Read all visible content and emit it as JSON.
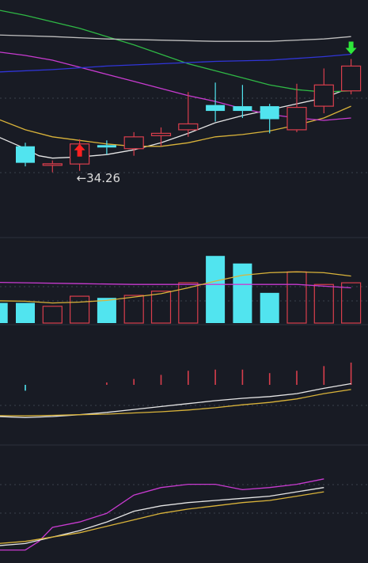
{
  "colors": {
    "background": "#181b24",
    "separator": "#2c313c",
    "grid": "#3a404c",
    "up": "#d93e4c",
    "down": "#51e4ef",
    "ma_white": "#e6e6e6",
    "ma_yellow": "#d9b33a",
    "ma_magenta": "#c83bd0",
    "ma_green": "#2fb845",
    "ma_blue": "#3035d8",
    "ma_gray": "#bdbdbd",
    "arrow_up": "#ff2020",
    "arrow_down": "#2ee83a",
    "annotation": "#dcdcdc"
  },
  "chart_data": [
    {
      "panel": "price",
      "type": "candlestick",
      "ylim": [
        31.5,
        41.5
      ],
      "x": [
        0,
        1,
        2,
        3,
        4,
        5,
        6,
        7,
        8,
        9,
        10,
        11,
        12
      ],
      "candles": [
        {
          "open": 35.3,
          "close": 34.6,
          "high": 35.45,
          "low": 34.45,
          "dir": "down"
        },
        {
          "open": 34.52,
          "close": 34.56,
          "high": 34.7,
          "low": 34.2,
          "dir": "up"
        },
        {
          "open": 34.55,
          "close": 35.4,
          "high": 35.6,
          "low": 34.26,
          "dir": "up",
          "marker": "up-arrow"
        },
        {
          "open": 35.35,
          "close": 35.25,
          "high": 35.55,
          "low": 34.95,
          "dir": "down"
        },
        {
          "open": 35.2,
          "close": 35.7,
          "high": 35.9,
          "low": 34.9,
          "dir": "up"
        },
        {
          "open": 35.75,
          "close": 35.85,
          "high": 36.1,
          "low": 35.3,
          "dir": "up"
        },
        {
          "open": 36.0,
          "close": 36.25,
          "high": 37.6,
          "low": 35.7,
          "dir": "up"
        },
        {
          "open": 37.05,
          "close": 36.8,
          "high": 38.0,
          "low": 36.35,
          "dir": "down"
        },
        {
          "open": 37.0,
          "close": 36.8,
          "high": 37.9,
          "low": 36.5,
          "dir": "down"
        },
        {
          "open": 37.0,
          "close": 36.45,
          "high": 37.1,
          "low": 35.85,
          "dir": "down"
        },
        {
          "open": 36.0,
          "close": 36.95,
          "high": 37.95,
          "low": 35.9,
          "dir": "up"
        },
        {
          "open": 37.0,
          "close": 37.9,
          "high": 38.6,
          "low": 36.7,
          "dir": "up"
        },
        {
          "open": 37.65,
          "close": 38.7,
          "high": 39.0,
          "low": 37.5,
          "dir": "up",
          "marker": "down-arrow"
        }
      ],
      "lines": [
        {
          "color": "ma_white",
          "points": [
            [
              -2,
              35.9
            ],
            [
              -1,
              35.7
            ],
            [
              0,
              35.2
            ],
            [
              0.5,
              34.9
            ],
            [
              1,
              34.8
            ],
            [
              2,
              34.85
            ],
            [
              3,
              34.95
            ],
            [
              4,
              35.15
            ],
            [
              5,
              35.45
            ],
            [
              6,
              35.85
            ],
            [
              7,
              36.3
            ],
            [
              8,
              36.6
            ],
            [
              9,
              36.85
            ],
            [
              10,
              37.1
            ],
            [
              11,
              37.35
            ],
            [
              12,
              37.8
            ]
          ]
        },
        {
          "color": "ma_yellow",
          "points": [
            [
              -2,
              36.7
            ],
            [
              -1,
              36.45
            ],
            [
              0,
              36.0
            ],
            [
              1,
              35.7
            ],
            [
              2,
              35.55
            ],
            [
              3,
              35.4
            ],
            [
              4,
              35.3
            ],
            [
              5,
              35.3
            ],
            [
              6,
              35.45
            ],
            [
              7,
              35.7
            ],
            [
              8,
              35.8
            ],
            [
              9,
              35.95
            ],
            [
              10,
              36.2
            ],
            [
              11,
              36.5
            ],
            [
              12,
              37.0
            ]
          ]
        },
        {
          "color": "ma_magenta",
          "points": [
            [
              -2,
              39.45
            ],
            [
              -1,
              39.3
            ],
            [
              0,
              39.15
            ],
            [
              1,
              38.95
            ],
            [
              2,
              38.65
            ],
            [
              3,
              38.35
            ],
            [
              4,
              38.05
            ],
            [
              5,
              37.75
            ],
            [
              6,
              37.45
            ],
            [
              7,
              37.2
            ],
            [
              8,
              36.9
            ],
            [
              9,
              36.65
            ],
            [
              10,
              36.5
            ],
            [
              11,
              36.4
            ],
            [
              12,
              36.5
            ]
          ]
        },
        {
          "color": "ma_green",
          "points": [
            [
              -2,
              41.3
            ],
            [
              0,
              40.85
            ],
            [
              2,
              40.3
            ],
            [
              4,
              39.6
            ],
            [
              6,
              38.8
            ],
            [
              7,
              38.5
            ],
            [
              8,
              38.2
            ],
            [
              9,
              37.9
            ],
            [
              10,
              37.7
            ],
            [
              11,
              37.6
            ],
            [
              12,
              37.65
            ]
          ]
        },
        {
          "color": "ma_blue",
          "points": [
            [
              -2,
              38.4
            ],
            [
              1,
              38.55
            ],
            [
              3,
              38.7
            ],
            [
              5,
              38.8
            ],
            [
              7,
              38.9
            ],
            [
              9,
              38.95
            ],
            [
              11,
              39.1
            ],
            [
              12,
              39.2
            ]
          ]
        },
        {
          "color": "ma_gray",
          "points": [
            [
              -2,
              40.05
            ],
            [
              1,
              39.95
            ],
            [
              3,
              39.85
            ],
            [
              5,
              39.8
            ],
            [
              7,
              39.75
            ],
            [
              9,
              39.75
            ],
            [
              11,
              39.85
            ],
            [
              12,
              39.95
            ]
          ]
        }
      ],
      "annotations": [
        {
          "text": "←34.26",
          "x": 2,
          "value": 34.26
        }
      ]
    },
    {
      "panel": "volume",
      "type": "bar",
      "ylim": [
        0,
        100
      ],
      "x": [
        -2,
        -1,
        0,
        1,
        2,
        3,
        4,
        5,
        6,
        7,
        8,
        9,
        10,
        11,
        12
      ],
      "values": [
        24,
        24,
        24,
        20,
        32,
        30,
        33,
        38,
        48,
        80,
        71,
        36,
        61,
        46,
        48
      ],
      "dirs": [
        "down",
        "down",
        "down",
        "up",
        "up",
        "down",
        "up",
        "up",
        "up",
        "down",
        "down",
        "down",
        "up",
        "up",
        "up"
      ],
      "lines": [
        {
          "color": "ma_magenta",
          "points": [
            [
              -2,
              49
            ],
            [
              0,
              48
            ],
            [
              2,
              47
            ],
            [
              4,
              46
            ],
            [
              6,
              46
            ],
            [
              8,
              46
            ],
            [
              10,
              46
            ],
            [
              12,
              42
            ]
          ]
        },
        {
          "color": "ma_yellow",
          "points": [
            [
              -2,
              27
            ],
            [
              0,
              26
            ],
            [
              1,
              24
            ],
            [
              2,
              25
            ],
            [
              3,
              27
            ],
            [
              4,
              31
            ],
            [
              5,
              35
            ],
            [
              6,
              42
            ],
            [
              7,
              50
            ],
            [
              8,
              57
            ],
            [
              9,
              60
            ],
            [
              10,
              61
            ],
            [
              11,
              60
            ],
            [
              12,
              56
            ]
          ]
        }
      ]
    },
    {
      "panel": "macd",
      "type": "histogram",
      "ylim": [
        -1,
        1
      ],
      "x": [
        -1,
        0,
        1,
        2,
        3,
        4,
        5,
        6,
        7,
        8,
        9,
        10,
        11,
        12
      ],
      "values": [
        -0.1,
        -0.1,
        0.0,
        0.0,
        0.04,
        0.1,
        0.17,
        0.24,
        0.26,
        0.26,
        0.2,
        0.24,
        0.32,
        0.38
      ],
      "lines": [
        {
          "color": "ma_white",
          "points": [
            [
              -2,
              -0.52
            ],
            [
              0,
              -0.56
            ],
            [
              1,
              -0.54
            ],
            [
              2,
              -0.51
            ],
            [
              3,
              -0.47
            ],
            [
              4,
              -0.42
            ],
            [
              5,
              -0.37
            ],
            [
              6,
              -0.32
            ],
            [
              7,
              -0.27
            ],
            [
              8,
              -0.23
            ],
            [
              9,
              -0.2
            ],
            [
              10,
              -0.15
            ],
            [
              11,
              -0.06
            ],
            [
              12,
              0.02
            ]
          ]
        },
        {
          "color": "ma_yellow",
          "points": [
            [
              -2,
              -0.52
            ],
            [
              0,
              -0.53
            ],
            [
              1,
              -0.52
            ],
            [
              2,
              -0.51
            ],
            [
              3,
              -0.5
            ],
            [
              4,
              -0.48
            ],
            [
              5,
              -0.46
            ],
            [
              6,
              -0.43
            ],
            [
              7,
              -0.39
            ],
            [
              8,
              -0.34
            ],
            [
              9,
              -0.3
            ],
            [
              10,
              -0.24
            ],
            [
              11,
              -0.15
            ],
            [
              12,
              -0.08
            ]
          ]
        }
      ]
    },
    {
      "panel": "kdj",
      "type": "line",
      "ylim": [
        0,
        100
      ],
      "x": [
        -2,
        12
      ],
      "lines": [
        {
          "color": "ma_magenta",
          "points": [
            [
              -2,
              12
            ],
            [
              -1,
              4
            ],
            [
              0,
              4
            ],
            [
              0.5,
              12
            ],
            [
              1,
              25
            ],
            [
              2,
              30
            ],
            [
              3,
              38
            ],
            [
              4,
              55
            ],
            [
              5,
              62
            ],
            [
              6,
              65
            ],
            [
              7,
              65
            ],
            [
              8,
              60
            ],
            [
              9,
              62
            ],
            [
              10,
              65
            ],
            [
              11,
              70
            ]
          ]
        },
        {
          "color": "ma_white",
          "points": [
            [
              -2,
              10
            ],
            [
              -1,
              8
            ],
            [
              0,
              10
            ],
            [
              1,
              16
            ],
            [
              2,
              22
            ],
            [
              3,
              30
            ],
            [
              4,
              40
            ],
            [
              5,
              45
            ],
            [
              6,
              48
            ],
            [
              7,
              50
            ],
            [
              8,
              52
            ],
            [
              9,
              54
            ],
            [
              10,
              58
            ],
            [
              11,
              62
            ]
          ]
        },
        {
          "color": "ma_yellow",
          "points": [
            [
              -2,
              10
            ],
            [
              -1,
              10
            ],
            [
              0,
              12
            ],
            [
              1,
              16
            ],
            [
              2,
              20
            ],
            [
              3,
              26
            ],
            [
              4,
              32
            ],
            [
              5,
              38
            ],
            [
              6,
              42
            ],
            [
              7,
              45
            ],
            [
              8,
              48
            ],
            [
              9,
              50
            ],
            [
              10,
              54
            ],
            [
              11,
              58
            ]
          ]
        }
      ]
    }
  ]
}
